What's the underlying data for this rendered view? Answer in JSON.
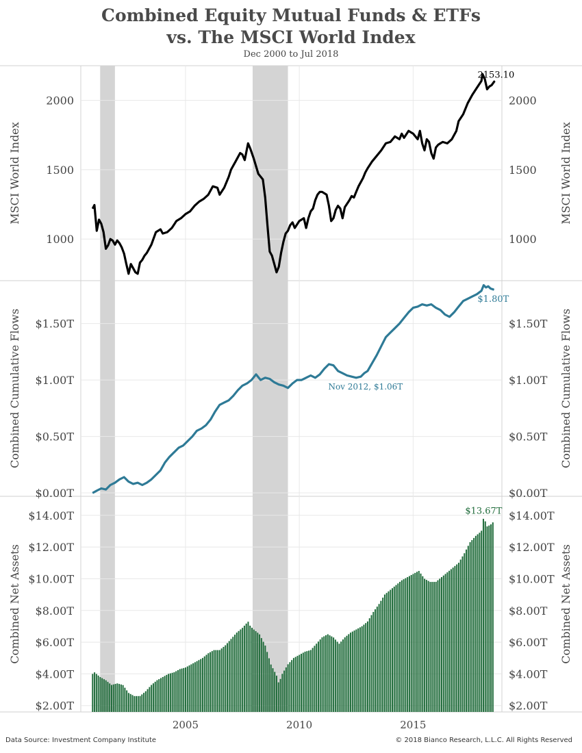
{
  "title_line1": "Combined Equity Mutual Funds & ETFs",
  "title_line2": "vs. The MSCI World Index",
  "subtitle": "Dec 2000 to Jul 2018",
  "footer": {
    "source": "Data Source: Investment Company Institute",
    "copyright": "© 2018 Bianco Research, L.L.C. All Rights Reserved"
  },
  "colors": {
    "msci": "#000000",
    "flows": "#2e7a96",
    "assets": "#1f6b3a",
    "recession": "#d4d4d4",
    "grid": "#e8e8e8"
  },
  "chart_data": [
    {
      "type": "line",
      "ylabel": "MSCI World Index",
      "yticks": [
        1000,
        1500,
        2000
      ],
      "ylim": [
        700,
        2250
      ],
      "xlim": [
        2000.4,
        2018.9
      ],
      "recessions": [
        [
          2001.25,
          2001.9
        ],
        [
          2007.95,
          2009.5
        ]
      ],
      "annotations": [
        {
          "text": "2153.10",
          "x": 2018.1,
          "y": 2153.1
        }
      ],
      "series": [
        {
          "x": [
            2000.92,
            2001.0,
            2001.1,
            2001.2,
            2001.3,
            2001.4,
            2001.5,
            2001.6,
            2001.7,
            2001.8,
            2001.9,
            2002.0,
            2002.1,
            2002.2,
            2002.3,
            2002.4,
            2002.5,
            2002.6,
            2002.7,
            2002.8,
            2002.9,
            2003.0,
            2003.1,
            2003.2,
            2003.3,
            2003.5,
            2003.7,
            2003.9,
            2004.0,
            2004.2,
            2004.4,
            2004.6,
            2004.8,
            2005.0,
            2005.2,
            2005.4,
            2005.6,
            2005.8,
            2006.0,
            2006.2,
            2006.4,
            2006.5,
            2006.7,
            2006.9,
            2007.0,
            2007.2,
            2007.4,
            2007.5,
            2007.6,
            2007.75,
            2007.85,
            2008.0,
            2008.2,
            2008.4,
            2008.5,
            2008.6,
            2008.7,
            2008.8,
            2008.9,
            2009.0,
            2009.1,
            2009.2,
            2009.3,
            2009.4,
            2009.5,
            2009.6,
            2009.7,
            2009.8,
            2010.0,
            2010.2,
            2010.3,
            2010.4,
            2010.5,
            2010.6,
            2010.7,
            2010.8,
            2010.9,
            2011.0,
            2011.2,
            2011.3,
            2011.4,
            2011.5,
            2011.6,
            2011.7,
            2011.8,
            2011.9,
            2012.0,
            2012.2,
            2012.3,
            2012.4,
            2012.5,
            2012.6,
            2012.8,
            2012.9,
            2013.0,
            2013.2,
            2013.4,
            2013.6,
            2013.8,
            2014.0,
            2014.2,
            2014.4,
            2014.5,
            2014.6,
            2014.8,
            2015.0,
            2015.2,
            2015.3,
            2015.4,
            2015.5,
            2015.6,
            2015.7,
            2015.8,
            2015.9,
            2016.0,
            2016.1,
            2016.2,
            2016.3,
            2016.5,
            2016.7,
            2016.9,
            2017.0,
            2017.2,
            2017.4,
            2017.6,
            2017.8,
            2018.0,
            2018.05,
            2018.15,
            2018.25,
            2018.35,
            2018.45,
            2018.58
          ],
          "values": [
            1220,
            1245,
            1060,
            1140,
            1110,
            1050,
            930,
            955,
            1000,
            990,
            960,
            990,
            970,
            940,
            895,
            820,
            750,
            820,
            790,
            760,
            750,
            830,
            850,
            880,
            900,
            960,
            1050,
            1070,
            1040,
            1050,
            1080,
            1130,
            1150,
            1180,
            1200,
            1240,
            1270,
            1290,
            1320,
            1380,
            1370,
            1320,
            1370,
            1450,
            1500,
            1560,
            1620,
            1610,
            1570,
            1690,
            1650,
            1580,
            1470,
            1430,
            1300,
            1100,
            910,
            880,
            820,
            760,
            800,
            900,
            980,
            1040,
            1060,
            1100,
            1120,
            1080,
            1130,
            1150,
            1080,
            1150,
            1200,
            1220,
            1280,
            1320,
            1340,
            1340,
            1320,
            1240,
            1130,
            1150,
            1210,
            1240,
            1220,
            1150,
            1230,
            1280,
            1310,
            1300,
            1340,
            1380,
            1440,
            1480,
            1510,
            1560,
            1600,
            1640,
            1690,
            1700,
            1740,
            1720,
            1760,
            1730,
            1780,
            1760,
            1720,
            1780,
            1690,
            1640,
            1720,
            1700,
            1620,
            1580,
            1660,
            1680,
            1690,
            1700,
            1690,
            1720,
            1780,
            1850,
            1900,
            1980,
            2040,
            2090,
            2140,
            2190,
            2153.1,
            2080,
            2100,
            2110,
            2140
          ]
        }
      ]
    },
    {
      "type": "line",
      "ylabel": "Combined Cumulative Flows",
      "yticks": [
        "$0.00T",
        "$0.50T",
        "$1.00T",
        "$1.50T"
      ],
      "ytick_values": [
        0,
        0.5,
        1.0,
        1.5
      ],
      "ylim": [
        -0.03,
        1.88
      ],
      "xlim": [
        2000.4,
        2018.9
      ],
      "recessions": [
        [
          2001.25,
          2001.9
        ],
        [
          2007.95,
          2009.5
        ]
      ],
      "annotations": [
        {
          "text": "Nov 2012, $1.06T",
          "x": 2012.85,
          "y": 1.06
        },
        {
          "text": "$1.80T",
          "x": 2018.55,
          "y": 1.8
        }
      ],
      "series": [
        {
          "x": [
            2000.92,
            2001.1,
            2001.3,
            2001.5,
            2001.7,
            2001.9,
            2002.1,
            2002.3,
            2002.5,
            2002.7,
            2002.9,
            2003.1,
            2003.3,
            2003.5,
            2003.7,
            2003.9,
            2004.1,
            2004.3,
            2004.5,
            2004.7,
            2004.9,
            2005.1,
            2005.3,
            2005.5,
            2005.7,
            2005.9,
            2006.1,
            2006.3,
            2006.5,
            2006.7,
            2006.9,
            2007.1,
            2007.3,
            2007.5,
            2007.7,
            2007.9,
            2008.1,
            2008.3,
            2008.5,
            2008.7,
            2008.9,
            2009.1,
            2009.3,
            2009.5,
            2009.7,
            2009.9,
            2010.1,
            2010.3,
            2010.5,
            2010.7,
            2010.9,
            2011.1,
            2011.3,
            2011.5,
            2011.7,
            2011.9,
            2012.1,
            2012.3,
            2012.5,
            2012.7,
            2012.85,
            2013.0,
            2013.2,
            2013.4,
            2013.6,
            2013.8,
            2014.0,
            2014.2,
            2014.4,
            2014.6,
            2014.8,
            2015.0,
            2015.2,
            2015.4,
            2015.6,
            2015.8,
            2016.0,
            2016.2,
            2016.4,
            2016.6,
            2016.8,
            2017.0,
            2017.2,
            2017.4,
            2017.6,
            2017.8,
            2018.0,
            2018.1,
            2018.2,
            2018.3,
            2018.4,
            2018.55
          ],
          "values": [
            0.0,
            0.02,
            0.04,
            0.03,
            0.07,
            0.09,
            0.12,
            0.14,
            0.1,
            0.08,
            0.09,
            0.07,
            0.09,
            0.12,
            0.16,
            0.2,
            0.27,
            0.32,
            0.36,
            0.4,
            0.42,
            0.46,
            0.5,
            0.55,
            0.57,
            0.6,
            0.65,
            0.72,
            0.78,
            0.8,
            0.82,
            0.86,
            0.91,
            0.95,
            0.97,
            1.0,
            1.05,
            1.0,
            1.02,
            1.01,
            0.98,
            0.96,
            0.95,
            0.93,
            0.97,
            1.0,
            1.0,
            1.02,
            1.04,
            1.02,
            1.05,
            1.1,
            1.14,
            1.13,
            1.08,
            1.06,
            1.04,
            1.03,
            1.02,
            1.03,
            1.06,
            1.08,
            1.15,
            1.22,
            1.3,
            1.38,
            1.42,
            1.46,
            1.5,
            1.55,
            1.6,
            1.64,
            1.65,
            1.67,
            1.66,
            1.67,
            1.64,
            1.62,
            1.58,
            1.56,
            1.6,
            1.65,
            1.7,
            1.72,
            1.74,
            1.76,
            1.79,
            1.84,
            1.82,
            1.83,
            1.81,
            1.8
          ]
        }
      ]
    },
    {
      "type": "bar",
      "ylabel": "Combined Net Assets",
      "yticks": [
        "$2.00T",
        "$4.00T",
        "$6.00T",
        "$8.00T",
        "$10.00T",
        "$12.00T",
        "$14.00T"
      ],
      "ytick_values": [
        2,
        4,
        6,
        8,
        10,
        12,
        14
      ],
      "ylim": [
        1.6,
        15.2
      ],
      "xlim": [
        2000.4,
        2018.9
      ],
      "recessions": [
        [
          2001.25,
          2001.9
        ],
        [
          2007.95,
          2009.5
        ]
      ],
      "annotations": [
        {
          "text": "$13.67T",
          "x": 2018.1,
          "y": 13.67
        }
      ],
      "series": [
        {
          "name": "Net Assets",
          "x": [
            2000.92,
            2001.0,
            2001.25,
            2001.5,
            2001.75,
            2002.0,
            2002.25,
            2002.5,
            2002.75,
            2003.0,
            2003.25,
            2003.5,
            2003.75,
            2004.0,
            2004.25,
            2004.5,
            2004.75,
            2005.0,
            2005.25,
            2005.5,
            2005.75,
            2006.0,
            2006.25,
            2006.5,
            2006.75,
            2007.0,
            2007.25,
            2007.5,
            2007.75,
            2007.85,
            2008.0,
            2008.25,
            2008.5,
            2008.75,
            2009.0,
            2009.1,
            2009.25,
            2009.5,
            2009.75,
            2010.0,
            2010.25,
            2010.5,
            2010.75,
            2011.0,
            2011.25,
            2011.5,
            2011.75,
            2012.0,
            2012.25,
            2012.5,
            2012.75,
            2013.0,
            2013.25,
            2013.5,
            2013.75,
            2014.0,
            2014.25,
            2014.5,
            2014.75,
            2015.0,
            2015.25,
            2015.5,
            2015.75,
            2016.0,
            2016.25,
            2016.5,
            2016.75,
            2017.0,
            2017.25,
            2017.5,
            2017.75,
            2018.0,
            2018.1,
            2018.25,
            2018.4,
            2018.58
          ],
          "values": [
            4.0,
            4.1,
            3.8,
            3.6,
            3.3,
            3.4,
            3.3,
            2.8,
            2.6,
            2.6,
            2.9,
            3.3,
            3.6,
            3.8,
            4.0,
            4.1,
            4.3,
            4.4,
            4.6,
            4.8,
            5.0,
            5.3,
            5.5,
            5.5,
            5.8,
            6.2,
            6.6,
            6.9,
            7.3,
            7.0,
            6.8,
            6.5,
            5.8,
            4.6,
            3.9,
            3.4,
            4.0,
            4.6,
            5.0,
            5.2,
            5.4,
            5.5,
            5.9,
            6.3,
            6.5,
            6.3,
            5.9,
            6.3,
            6.6,
            6.8,
            7.0,
            7.3,
            7.9,
            8.4,
            9.0,
            9.3,
            9.6,
            9.9,
            10.1,
            10.3,
            10.5,
            10.0,
            9.8,
            9.8,
            10.1,
            10.4,
            10.7,
            11.0,
            11.6,
            12.3,
            12.7,
            13.0,
            13.9,
            13.3,
            13.4,
            13.67
          ]
        }
      ]
    }
  ],
  "xaxis": {
    "ticks": [
      "2005",
      "2010",
      "2015"
    ],
    "tick_values": [
      2005,
      2010,
      2015
    ]
  }
}
